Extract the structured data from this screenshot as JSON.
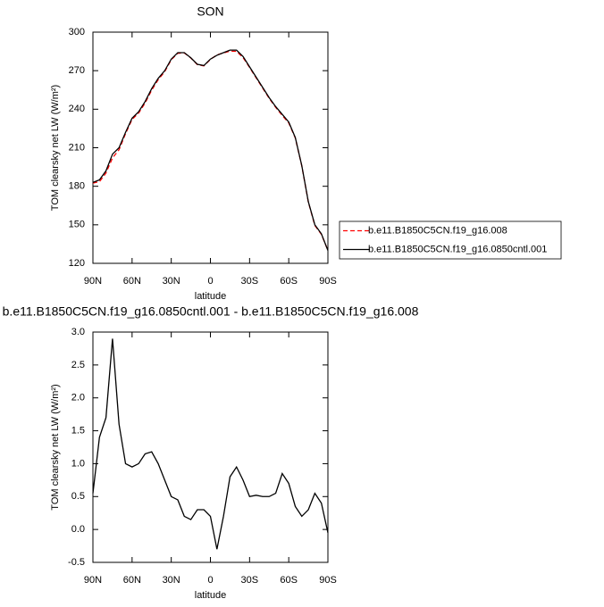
{
  "chart_data": [
    {
      "type": "line",
      "title": "SON",
      "xlabel": "latitude",
      "ylabel": "TOM clearsky net LW (W/m²)",
      "x": [
        90,
        85,
        80,
        75,
        70,
        65,
        60,
        55,
        50,
        45,
        40,
        35,
        30,
        25,
        20,
        15,
        10,
        5,
        0,
        -5,
        -10,
        -15,
        -20,
        -25,
        -30,
        -35,
        -40,
        -45,
        -50,
        -55,
        -60,
        -65,
        -70,
        -75,
        -80,
        -85,
        -90
      ],
      "xlim": [
        90,
        -90
      ],
      "xticks": [
        {
          "value": 90,
          "label": "90N"
        },
        {
          "value": 60,
          "label": "60N"
        },
        {
          "value": 30,
          "label": "30N"
        },
        0,
        {
          "value": -30,
          "label": "30S"
        },
        {
          "value": -60,
          "label": "60S"
        },
        {
          "value": -90,
          "label": "90S"
        }
      ],
      "ylim": [
        120,
        300
      ],
      "yticks": [
        120,
        150,
        180,
        210,
        240,
        270,
        300
      ],
      "legend": "right",
      "series": [
        {
          "name": "b.e11.B1850C5CN.f19_g16.008",
          "color": "#ff0000",
          "dashed": true,
          "values": [
            182.45,
            183.6,
            190.3,
            202.1,
            208.4,
            221,
            232.05,
            237,
            244.85,
            254.82,
            263,
            269.25,
            278.5,
            283.55,
            283.8,
            279.85,
            274.7,
            273.7,
            278.8,
            282.3,
            283.8,
            285.2,
            285.05,
            280.25,
            272.5,
            264.48,
            256.5,
            248.5,
            241.45,
            235.15,
            229.3,
            217.65,
            195.8,
            167.7,
            149.45,
            142.6,
            130.05
          ]
        },
        {
          "name": "b.e11.B1850C5CN.f19_g16.0850cntl.001",
          "color": "#000000",
          "dashed": false,
          "values": [
            183,
            185,
            192,
            205,
            210,
            222,
            233,
            238,
            246,
            256,
            264,
            270,
            279,
            284,
            284,
            280,
            275,
            274,
            279,
            282,
            284,
            286,
            286,
            281,
            273,
            265,
            257,
            249,
            242,
            236,
            230,
            218,
            196,
            168,
            150,
            143,
            130
          ]
        }
      ]
    },
    {
      "type": "line",
      "title": "b.e11.B1850C5CN.f19_g16.0850cntl.001 - b.e11.B1850C5CN.f19_g16.008",
      "xlabel": "latitude",
      "ylabel": "TOM clearsky net LW (W/m²)",
      "x": [
        90,
        85,
        80,
        75,
        70,
        65,
        60,
        55,
        50,
        45,
        40,
        35,
        30,
        25,
        20,
        15,
        10,
        5,
        0,
        -5,
        -10,
        -15,
        -20,
        -25,
        -30,
        -35,
        -40,
        -45,
        -50,
        -55,
        -60,
        -65,
        -70,
        -75,
        -80,
        -85,
        -90
      ],
      "xlim": [
        90,
        -90
      ],
      "xticks": [
        {
          "value": 90,
          "label": "90N"
        },
        {
          "value": 60,
          "label": "60N"
        },
        {
          "value": 30,
          "label": "30N"
        },
        0,
        {
          "value": -30,
          "label": "30S"
        },
        {
          "value": -60,
          "label": "60S"
        },
        {
          "value": -90,
          "label": "90S"
        }
      ],
      "ylim": [
        -0.5,
        3.0
      ],
      "yticks": [
        -0.5,
        {
          "value": 0,
          "label": "0.0"
        },
        0.5,
        {
          "value": 1,
          "label": "1.0"
        },
        1.5,
        {
          "value": 2,
          "label": "2.0"
        },
        2.5,
        {
          "value": 3,
          "label": "3.0"
        }
      ],
      "series": [
        {
          "color": "#000000",
          "dashed": false,
          "values": [
            0.55,
            1.4,
            1.7,
            2.9,
            1.6,
            1.0,
            0.95,
            1.0,
            1.15,
            1.18,
            1.0,
            0.75,
            0.5,
            0.45,
            0.2,
            0.15,
            0.3,
            0.3,
            0.2,
            -0.3,
            0.2,
            0.8,
            0.95,
            0.75,
            0.5,
            0.52,
            0.5,
            0.5,
            0.55,
            0.85,
            0.7,
            0.35,
            0.2,
            0.3,
            0.55,
            0.4,
            -0.05
          ]
        }
      ]
    }
  ]
}
